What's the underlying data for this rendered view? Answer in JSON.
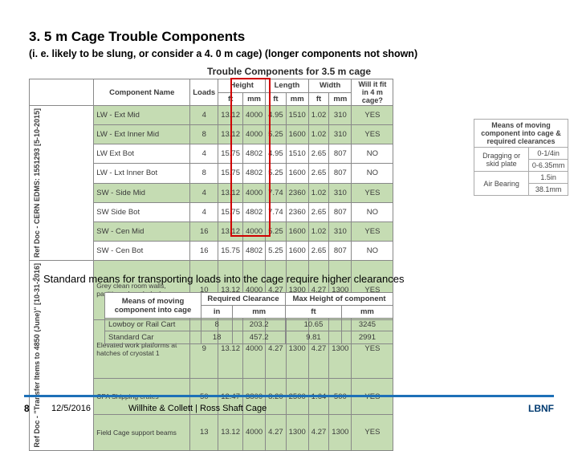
{
  "title": "3. 5 m Cage Trouble Components",
  "subtitle": "(i. e. likely to be slung, or consider a 4. 0 m cage) (longer components not shown)",
  "mainTableTitle": "Trouble Components for 3.5 m cage",
  "headers": {
    "compName": "Component Name",
    "loads": "Loads",
    "height": "Height",
    "length": "Length",
    "width": "Width",
    "fit": "Will it fit in 4 m cage?",
    "ft": "ft",
    "mm": "mm"
  },
  "refdoc1": "Ref Doc - CERN EDMS: 1551293 [5-10-2015]",
  "refdoc2": "Ref Doc - \"Transfer Items to 4850 (June)\" [10-31-2016]",
  "rows1": [
    {
      "name": "LW - Ext Mid",
      "loads": "4",
      "hf": "13.12",
      "hm": "4000",
      "lf": "4.95",
      "lm": "1510",
      "wf": "1.02",
      "wm": "310",
      "fit": "YES",
      "cls": "row-green"
    },
    {
      "name": "LW - Ext Inner Mid",
      "loads": "8",
      "hf": "13.12",
      "hm": "4000",
      "lf": "5.25",
      "lm": "1600",
      "wf": "1.02",
      "wm": "310",
      "fit": "YES",
      "cls": "row-green"
    },
    {
      "name": "LW  Ext Bot",
      "loads": "4",
      "hf": "15.75",
      "hm": "4802",
      "lf": "4.95",
      "lm": "1510",
      "wf": "2.65",
      "wm": "807",
      "fit": "NO",
      "cls": "row-white"
    },
    {
      "name": "LW - Lxt Inner Bot",
      "loads": "8",
      "hf": "15.75",
      "hm": "4802",
      "lf": "5.25",
      "lm": "1600",
      "wf": "2.65",
      "wm": "807",
      "fit": "NO",
      "cls": "row-white"
    },
    {
      "name": "SW - Side Mid",
      "loads": "4",
      "hf": "13.12",
      "hm": "4000",
      "lf": "7.74",
      "lm": "2360",
      "wf": "1.02",
      "wm": "310",
      "fit": "YES",
      "cls": "row-green"
    },
    {
      "name": "SW  Side Bot",
      "loads": "4",
      "hf": "15.75",
      "hm": "4802",
      "lf": "7.74",
      "lm": "2360",
      "wf": "2.65",
      "wm": "807",
      "fit": "NO",
      "cls": "row-white"
    },
    {
      "name": "SW - Cen Mid",
      "loads": "16",
      "hf": "13.12",
      "hm": "4000",
      "lf": "5.25",
      "lm": "1600",
      "wf": "1.02",
      "wm": "310",
      "fit": "YES",
      "cls": "row-green"
    },
    {
      "name": "SW - Cen Bot",
      "loads": "16",
      "hf": "15.75",
      "hm": "4802",
      "lf": "5.25",
      "lm": "1600",
      "wf": "2.65",
      "wm": "807",
      "fit": "NO",
      "cls": "row-white"
    }
  ],
  "rows2": [
    {
      "name": "Grey clean room walls, partitions, bench, lockers",
      "loads": "10",
      "hf": "13.12",
      "hm": "4000",
      "lf": "4.27",
      "lm": "1300",
      "wf": "4.27",
      "wm": "1300",
      "fit": "YES",
      "cls": "row-green"
    },
    {
      "name": "Elevated work platforms at hatches of cryostat 1",
      "loads": "9",
      "hf": "13.12",
      "hm": "4000",
      "lf": "4.27",
      "lm": "1300",
      "wf": "4.27",
      "wm": "1300",
      "fit": "YES",
      "cls": "row-green"
    },
    {
      "name": "CPA Shipping crates",
      "loads": "50",
      "hf": "12.47",
      "hm": "3800",
      "lf": "8.20",
      "lm": "2500",
      "wf": "1.64",
      "wm": "500",
      "fit": "YES",
      "cls": "row-green"
    },
    {
      "name": "Field Cage support beams",
      "loads": "13",
      "hf": "13.12",
      "hm": "4000",
      "lf": "4.27",
      "lm": "1300",
      "wf": "4.27",
      "wm": "1300",
      "fit": "YES",
      "cls": "row-green"
    }
  ],
  "sidePanel": {
    "title": "Means of moving component into cage & required clearances",
    "r1": {
      "a": "Dragging or skid plate",
      "b": "0-1/4in",
      "c": "0-6.35mm"
    },
    "r2": {
      "a": "Air Bearing",
      "b": "1.5in",
      "c": "38.1mm"
    }
  },
  "bullet": "Standard means for transporting loads into the cage require higher clearances",
  "second": {
    "h1": "Means of moving component into cage",
    "h2": "Required Clearance",
    "h3": "Max Height of component",
    "in": "in",
    "mm": "mm",
    "ft": "ft",
    "rows": [
      {
        "name": "Lowboy or Rail Cart",
        "cin": "8",
        "cmm": "203.2",
        "mft": "10.65",
        "mmm": "3245"
      },
      {
        "name": "Standard Car",
        "cin": "18",
        "cmm": "457.2",
        "mft": "9.81",
        "mmm": "2991"
      }
    ]
  },
  "footer": {
    "page": "8",
    "date": "12/5/2016",
    "mid": "Willhite & Collett | Ross Shaft Cage",
    "right": "LBNF"
  },
  "colors": {
    "accent": "#1d70b7",
    "greenRow": "#c5dcb3",
    "redBox": "#d00000"
  }
}
